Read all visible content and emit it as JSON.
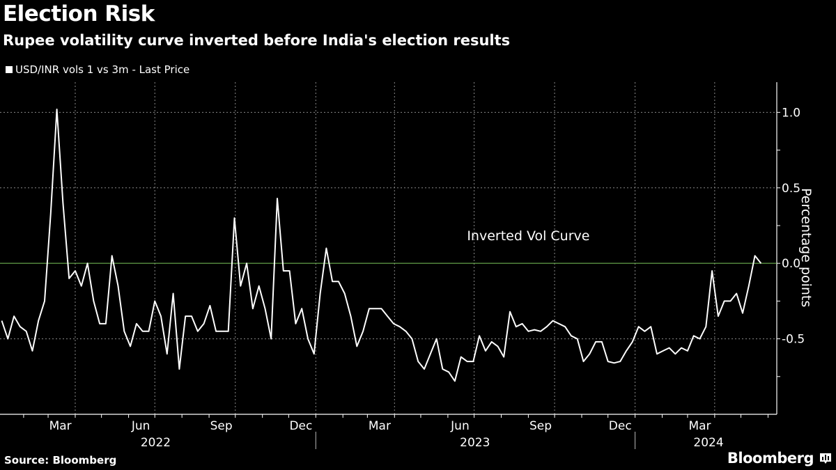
{
  "header": {
    "title": "Election Risk",
    "subtitle": "Rupee volatility curve inverted before India's election results"
  },
  "legend": {
    "label": "USD/INR vols 1 vs 3m - Last Price",
    "swatch_icon": "square-icon"
  },
  "footer": {
    "source": "Source: Bloomberg",
    "brand": "Bloomberg",
    "brand_icon": "bloomberg-chart-icon"
  },
  "colors": {
    "background": "#000000",
    "line": "#ffffff",
    "zero_line": "#7cc95c",
    "grid": "#8a8a8a"
  },
  "chart_data": {
    "type": "line",
    "title": "Election Risk",
    "subtitle": "Rupee volatility curve inverted before India's election results",
    "ylabel": "Percentage points",
    "xlabel": "",
    "ylim": [
      -1.0,
      1.2
    ],
    "xlim": [
      "2022-01-05",
      "2024-06-11"
    ],
    "grid": true,
    "legend_placement": "top-left",
    "y_ticks": [
      {
        "value": 1.0,
        "label": "1.0"
      },
      {
        "value": 0.5,
        "label": "0.5"
      },
      {
        "value": 0.0,
        "label": "0.0"
      },
      {
        "value": -0.5,
        "label": "-0.5"
      }
    ],
    "y_minor_ticks": [
      0.75,
      0.25,
      -0.25,
      -0.75
    ],
    "x_gridlines": [
      "2022-04-01",
      "2022-07-01",
      "2022-10-01",
      "2023-01-01",
      "2023-04-01",
      "2023-07-01",
      "2023-10-01",
      "2024-01-01",
      "2024-04-01"
    ],
    "x_month_labels": [
      {
        "label": "Mar",
        "date": "2022-03-15"
      },
      {
        "label": "Jun",
        "date": "2022-06-15"
      },
      {
        "label": "Sep",
        "date": "2022-09-15"
      },
      {
        "label": "Dec",
        "date": "2022-12-15"
      },
      {
        "label": "Mar",
        "date": "2023-03-15"
      },
      {
        "label": "Jun",
        "date": "2023-06-15"
      },
      {
        "label": "Sep",
        "date": "2023-09-15"
      },
      {
        "label": "Dec",
        "date": "2023-12-15"
      },
      {
        "label": "Mar",
        "date": "2024-03-15"
      }
    ],
    "x_year_labels": [
      {
        "label": "2022",
        "date": "2022-07-02"
      },
      {
        "label": "2023",
        "date": "2023-07-02"
      },
      {
        "label": "2024",
        "date": "2024-03-25"
      }
    ],
    "year_separators": [
      "2023-01-01",
      "2024-01-01"
    ],
    "reference_line": {
      "value": 0.0
    },
    "annotation": {
      "text": "Inverted Vol Curve",
      "date": "2023-09-01",
      "value": 0.18
    },
    "series": [
      {
        "name": "USD/INR vols 1 vs 3m - Last Price",
        "points": [
          [
            "2022-01-07",
            -0.38
          ],
          [
            "2022-01-14",
            -0.5
          ],
          [
            "2022-01-21",
            -0.35
          ],
          [
            "2022-01-28",
            -0.42
          ],
          [
            "2022-02-04",
            -0.45
          ],
          [
            "2022-02-11",
            -0.58
          ],
          [
            "2022-02-18",
            -0.38
          ],
          [
            "2022-02-25",
            -0.25
          ],
          [
            "2022-03-04",
            0.33
          ],
          [
            "2022-03-11",
            1.02
          ],
          [
            "2022-03-18",
            0.4
          ],
          [
            "2022-03-25",
            -0.1
          ],
          [
            "2022-04-01",
            -0.05
          ],
          [
            "2022-04-08",
            -0.15
          ],
          [
            "2022-04-15",
            0.0
          ],
          [
            "2022-04-22",
            -0.25
          ],
          [
            "2022-04-29",
            -0.4
          ],
          [
            "2022-05-06",
            -0.4
          ],
          [
            "2022-05-13",
            0.05
          ],
          [
            "2022-05-20",
            -0.15
          ],
          [
            "2022-05-27",
            -0.45
          ],
          [
            "2022-06-03",
            -0.55
          ],
          [
            "2022-06-10",
            -0.4
          ],
          [
            "2022-06-17",
            -0.45
          ],
          [
            "2022-06-24",
            -0.45
          ],
          [
            "2022-07-01",
            -0.25
          ],
          [
            "2022-07-08",
            -0.35
          ],
          [
            "2022-07-15",
            -0.6
          ],
          [
            "2022-07-22",
            -0.2
          ],
          [
            "2022-07-29",
            -0.7
          ],
          [
            "2022-08-05",
            -0.35
          ],
          [
            "2022-08-12",
            -0.35
          ],
          [
            "2022-08-19",
            -0.45
          ],
          [
            "2022-08-26",
            -0.4
          ],
          [
            "2022-09-02",
            -0.28
          ],
          [
            "2022-09-09",
            -0.45
          ],
          [
            "2022-09-16",
            -0.45
          ],
          [
            "2022-09-23",
            -0.45
          ],
          [
            "2022-09-30",
            0.3
          ],
          [
            "2022-10-07",
            -0.15
          ],
          [
            "2022-10-14",
            0.0
          ],
          [
            "2022-10-21",
            -0.3
          ],
          [
            "2022-10-28",
            -0.15
          ],
          [
            "2022-11-04",
            -0.3
          ],
          [
            "2022-11-11",
            -0.5
          ],
          [
            "2022-11-18",
            0.43
          ],
          [
            "2022-11-25",
            -0.05
          ],
          [
            "2022-12-02",
            -0.05
          ],
          [
            "2022-12-09",
            -0.4
          ],
          [
            "2022-12-16",
            -0.3
          ],
          [
            "2022-12-23",
            -0.5
          ],
          [
            "2022-12-30",
            -0.6
          ],
          [
            "2023-01-06",
            -0.2
          ],
          [
            "2023-01-13",
            0.1
          ],
          [
            "2023-01-20",
            -0.12
          ],
          [
            "2023-01-27",
            -0.12
          ],
          [
            "2023-02-03",
            -0.2
          ],
          [
            "2023-02-10",
            -0.35
          ],
          [
            "2023-02-17",
            -0.55
          ],
          [
            "2023-02-24",
            -0.45
          ],
          [
            "2023-03-03",
            -0.3
          ],
          [
            "2023-03-10",
            -0.3
          ],
          [
            "2023-03-17",
            -0.3
          ],
          [
            "2023-03-24",
            -0.35
          ],
          [
            "2023-03-31",
            -0.4
          ],
          [
            "2023-04-07",
            -0.42
          ],
          [
            "2023-04-14",
            -0.45
          ],
          [
            "2023-04-21",
            -0.5
          ],
          [
            "2023-04-28",
            -0.65
          ],
          [
            "2023-05-05",
            -0.7
          ],
          [
            "2023-05-12",
            -0.6
          ],
          [
            "2023-05-19",
            -0.5
          ],
          [
            "2023-05-26",
            -0.7
          ],
          [
            "2023-06-02",
            -0.72
          ],
          [
            "2023-06-09",
            -0.78
          ],
          [
            "2023-06-16",
            -0.62
          ],
          [
            "2023-06-23",
            -0.65
          ],
          [
            "2023-06-30",
            -0.65
          ],
          [
            "2023-07-07",
            -0.48
          ],
          [
            "2023-07-14",
            -0.58
          ],
          [
            "2023-07-21",
            -0.52
          ],
          [
            "2023-07-28",
            -0.55
          ],
          [
            "2023-08-04",
            -0.62
          ],
          [
            "2023-08-11",
            -0.32
          ],
          [
            "2023-08-18",
            -0.42
          ],
          [
            "2023-08-25",
            -0.4
          ],
          [
            "2023-09-01",
            -0.45
          ],
          [
            "2023-09-08",
            -0.44
          ],
          [
            "2023-09-15",
            -0.45
          ],
          [
            "2023-09-22",
            -0.42
          ],
          [
            "2023-09-29",
            -0.38
          ],
          [
            "2023-10-06",
            -0.4
          ],
          [
            "2023-10-13",
            -0.42
          ],
          [
            "2023-10-20",
            -0.48
          ],
          [
            "2023-10-27",
            -0.5
          ],
          [
            "2023-11-03",
            -0.65
          ],
          [
            "2023-11-10",
            -0.6
          ],
          [
            "2023-11-17",
            -0.52
          ],
          [
            "2023-11-24",
            -0.52
          ],
          [
            "2023-12-01",
            -0.65
          ],
          [
            "2023-12-08",
            -0.66
          ],
          [
            "2023-12-15",
            -0.65
          ],
          [
            "2023-12-22",
            -0.58
          ],
          [
            "2023-12-29",
            -0.52
          ],
          [
            "2024-01-05",
            -0.42
          ],
          [
            "2024-01-12",
            -0.45
          ],
          [
            "2024-01-19",
            -0.42
          ],
          [
            "2024-01-26",
            -0.6
          ],
          [
            "2024-02-02",
            -0.58
          ],
          [
            "2024-02-09",
            -0.56
          ],
          [
            "2024-02-16",
            -0.6
          ],
          [
            "2024-02-23",
            -0.56
          ],
          [
            "2024-03-01",
            -0.58
          ],
          [
            "2024-03-08",
            -0.48
          ],
          [
            "2024-03-15",
            -0.5
          ],
          [
            "2024-03-22",
            -0.42
          ],
          [
            "2024-03-29",
            -0.05
          ],
          [
            "2024-04-05",
            -0.35
          ],
          [
            "2024-04-12",
            -0.25
          ],
          [
            "2024-04-19",
            -0.25
          ],
          [
            "2024-04-26",
            -0.2
          ],
          [
            "2024-05-03",
            -0.33
          ],
          [
            "2024-05-10",
            -0.15
          ],
          [
            "2024-05-17",
            0.05
          ],
          [
            "2024-05-24",
            0.0
          ]
        ]
      }
    ]
  }
}
